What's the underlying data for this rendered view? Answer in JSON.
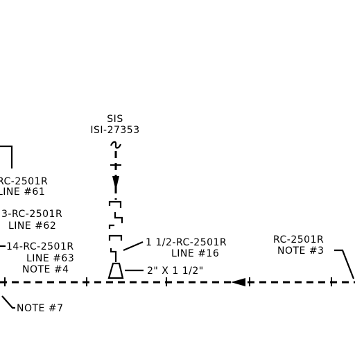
{
  "labels": {
    "sis": "SIS",
    "isi_tag": "ISI-27353",
    "line61_code": "RC-2501R",
    "line61_name": "LINE #61",
    "line62_code": "3-RC-2501R",
    "line62_name": "LINE #62",
    "line63_code": "14-RC-2501R",
    "line63_name": "LINE #63",
    "note4": "NOTE #4",
    "line16_code": "1 1/2-RC-2501R",
    "line16_name": "LINE #16",
    "reducer": "2\" X 1 1/2\"",
    "right_code": "RC-2501R",
    "note3": "NOTE #3",
    "note7": "NOTE #7"
  },
  "colors": {
    "ink": "#000000",
    "paper": "#ffffff"
  }
}
